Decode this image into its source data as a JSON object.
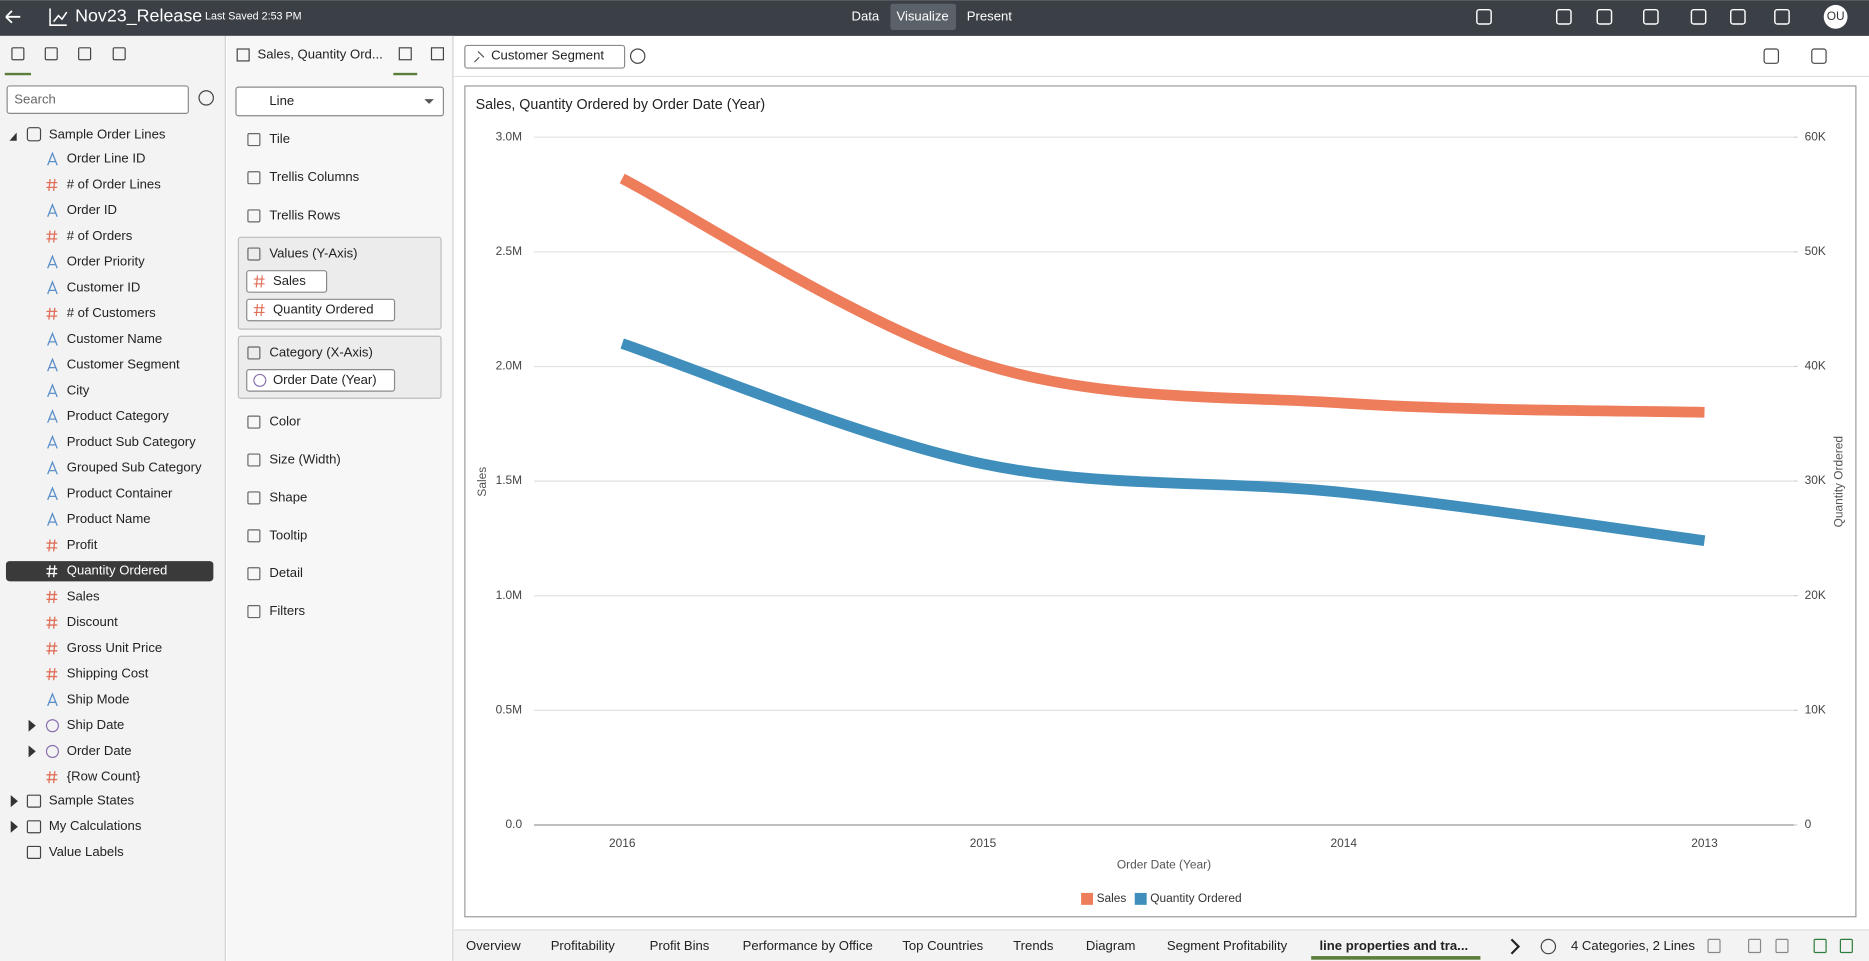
{
  "header": {
    "title": "Nov23_Release",
    "saved": "Last Saved 2:53 PM",
    "nav": [
      "Data",
      "Visualize",
      "Present"
    ],
    "user": "OU"
  },
  "data_panel": {
    "search": "Search",
    "source": "Sample Order Lines",
    "fields": [
      "Order Line ID",
      "# of Order Lines",
      "Order ID",
      "# of Orders",
      "Order Priority",
      "Customer ID",
      "# of Customers",
      "Customer Name",
      "Customer Segment",
      "City",
      "Product Category",
      "Product Sub Category",
      "Grouped Sub Category",
      "Product Container",
      "Product Name",
      "Profit",
      "Quantity Ordered",
      "Sales",
      "Discount",
      "Gross Unit Price",
      "Shipping Cost",
      "Ship Mode",
      "Ship Date",
      "Order Date",
      "{Row Count}"
    ],
    "others": [
      "Sample States",
      "My Calculations",
      "Value Labels"
    ]
  },
  "grammar_panel": {
    "title": "Sales, Quantity Ord...",
    "chart_type": "Line",
    "items_top": [
      "Tile",
      "Trellis Columns",
      "Trellis Rows"
    ],
    "values_label": "Values (Y-Axis)",
    "values": [
      "Sales",
      "Quantity Ordered"
    ],
    "category_label": "Category (X-Axis)",
    "category": [
      "Order Date (Year)"
    ],
    "items_bottom": [
      "Color",
      "Size (Width)",
      "Shape",
      "Tooltip",
      "Detail",
      "Filters"
    ]
  },
  "filter_bar": {
    "chips": [
      "Customer Segment"
    ]
  },
  "chart_data": {
    "type": "line",
    "title": "Sales, Quantity Ordered by Order Date (Year)",
    "x_label": "Order Date (Year)",
    "y_label": "Sales",
    "y2_label": "Quantity Ordered",
    "categories": [
      "2016",
      "2015",
      "2014",
      "2013"
    ],
    "series": [
      {
        "name": "Sales",
        "color": "#ee7d5c",
        "values": [
          2820000,
          2010000,
          1840000,
          1800000
        ]
      },
      {
        "name": "Quantity Ordered",
        "color": "#3f8ebc",
        "axis": "y2",
        "values": [
          42000,
          31500,
          29000,
          24800
        ]
      }
    ],
    "ylim": [
      0,
      3000000
    ],
    "yticks": [
      {
        "value": 0,
        "label": "0.0"
      },
      {
        "value": 500000,
        "label": "0.5M"
      },
      {
        "value": 1000000,
        "label": "1.0M"
      },
      {
        "value": 1500000,
        "label": "1.5M"
      },
      {
        "value": 2000000,
        "label": "2.0M"
      },
      {
        "value": 2500000,
        "label": "2.5M"
      },
      {
        "value": 3000000,
        "label": "3.0M"
      }
    ],
    "y2lim": [
      0,
      60000
    ],
    "y2ticks": [
      0,
      {
        "value": 10000,
        "label": "10K"
      },
      {
        "value": 20000,
        "label": "20K"
      },
      {
        "value": 30000,
        "label": "30K"
      },
      {
        "value": 40000,
        "label": "40K"
      },
      {
        "value": 50000,
        "label": "50K"
      },
      {
        "value": 60000,
        "label": "60K"
      }
    ],
    "grid": true,
    "legend": "bottom"
  },
  "tabs": {
    "items": [
      "Overview",
      "Profitability",
      "Profit Bins",
      "Performance by Office",
      "Top Countries",
      "Trends",
      "Diagram",
      "Segment Profitability",
      "line properties and tra..."
    ],
    "status": "4 Categories, 2 Lines"
  }
}
